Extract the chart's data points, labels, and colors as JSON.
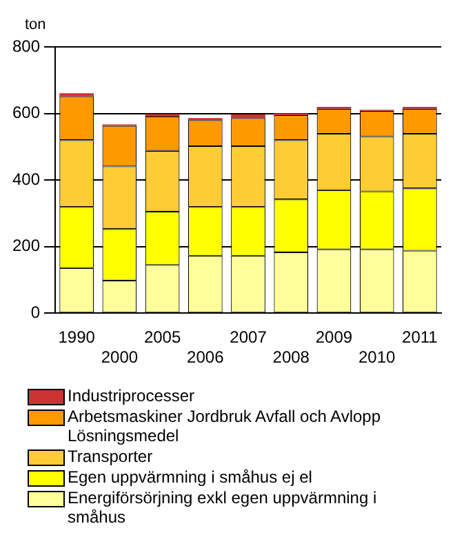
{
  "chart_data": {
    "type": "bar",
    "stacked": true,
    "ylabel": "ton",
    "categories": [
      "1990",
      "2000",
      "2005",
      "2006",
      "2007",
      "2008",
      "2009",
      "2010",
      "2011"
    ],
    "series": [
      {
        "name": "Energiförsörjning exkl egen uppvärmning i småhus",
        "color": "#ffff99",
        "values": [
          136,
          98,
          145,
          173,
          173,
          183,
          192,
          192,
          188
        ]
      },
      {
        "name": "Egen uppvärmning i småhus ej el",
        "color": "#ffff00",
        "values": [
          183,
          155,
          160,
          146,
          146,
          159,
          178,
          174,
          187
        ]
      },
      {
        "name": "Transporter",
        "color": "#ffcc33",
        "values": [
          201,
          188,
          183,
          183,
          183,
          178,
          169,
          164,
          164
        ]
      },
      {
        "name": "Arbetsmaskiner Jordbruk Avfall och Avlopp Lösningsmedel",
        "color": "#ff9900",
        "values": [
          132,
          122,
          103,
          78,
          84,
          75,
          75,
          78,
          75
        ]
      },
      {
        "name": "Industriprocesser",
        "color": "#cc3333",
        "values": [
          9,
          4,
          7,
          6,
          11,
          5,
          6,
          3,
          6
        ]
      }
    ],
    "ylim": [
      0,
      800
    ],
    "yticks": [
      0,
      200,
      400,
      600,
      800
    ],
    "grid": "y",
    "legend": "bottom"
  }
}
